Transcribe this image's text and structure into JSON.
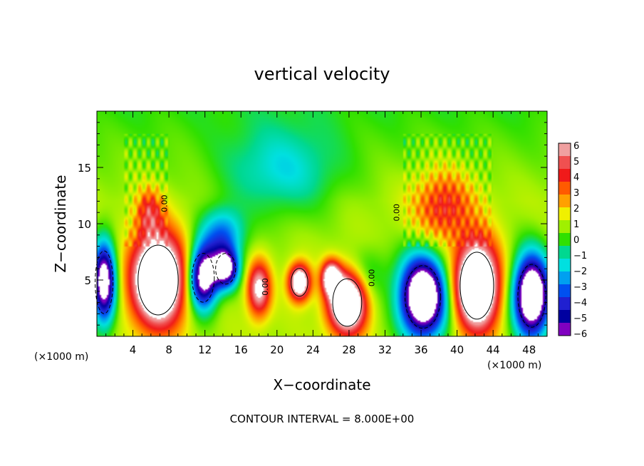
{
  "chart_data": {
    "type": "heatmap",
    "title": "vertical velocity",
    "xlabel": "X−coordinate",
    "ylabel": "Z−coordinate",
    "x_unit_left": "(×1000 m)",
    "x_unit_right": "(×1000 m)",
    "xlim": [
      0,
      50
    ],
    "ylim": [
      0,
      20
    ],
    "x_ticks": [
      4,
      8,
      12,
      16,
      20,
      24,
      28,
      32,
      36,
      40,
      44,
      48
    ],
    "y_ticks": [
      5,
      10,
      15
    ],
    "contour_interval_text": "CONTOUR INTERVAL = 8.000E+00",
    "contour_label": "0.00",
    "colorbar": {
      "range": [
        -6,
        6
      ],
      "labels": [
        "6",
        "5",
        "4",
        "3",
        "2",
        "1",
        "0",
        "−1",
        "−2",
        "−3",
        "−4",
        "−5",
        "−6"
      ],
      "colors": [
        "#f0a0a0",
        "#f05050",
        "#f01a1a",
        "#ff5a00",
        "#ffa000",
        "#f0f000",
        "#a0f000",
        "#30e000",
        "#00d890",
        "#00e0e0",
        "#00a0f0",
        "#0050f0",
        "#2020d0",
        "#0000a0",
        "#8000c0"
      ]
    },
    "features": [
      {
        "kind": "updraft",
        "x": 6.8,
        "z": 5.0,
        "rx": 3.6,
        "rz": 5.0,
        "peak": 11
      },
      {
        "kind": "updraft",
        "x": 18.0,
        "z": 4.2,
        "rx": 1.6,
        "rz": 3.0,
        "peak": 6
      },
      {
        "kind": "updraft",
        "x": 22.5,
        "z": 4.8,
        "rx": 1.5,
        "rz": 2.0,
        "peak": 8
      },
      {
        "kind": "updraft",
        "x": 26.0,
        "z": 5.2,
        "rx": 1.3,
        "rz": 1.8,
        "peak": 7
      },
      {
        "kind": "updraft",
        "x": 27.8,
        "z": 3.0,
        "rx": 2.6,
        "rz": 3.4,
        "peak": 10
      },
      {
        "kind": "updraft",
        "x": 42.2,
        "z": 4.5,
        "rx": 3.0,
        "rz": 4.8,
        "peak": 11
      },
      {
        "kind": "updraft",
        "x": 5.8,
        "z": 11.0,
        "rx": 1.8,
        "rz": 2.6,
        "peak": 3.2
      },
      {
        "kind": "updraft",
        "x": 38.5,
        "z": 11.5,
        "rx": 4.0,
        "rz": 4.0,
        "peak": 3.4
      },
      {
        "kind": "downdraft",
        "x": 0.8,
        "z": 4.8,
        "rx": 1.6,
        "rz": 4.5,
        "peak": -9
      },
      {
        "kind": "downdraft",
        "x": 11.8,
        "z": 5.2,
        "rx": 2.0,
        "rz": 3.5,
        "peak": -9
      },
      {
        "kind": "downdraft",
        "x": 14.3,
        "z": 6.0,
        "rx": 1.8,
        "rz": 2.2,
        "peak": -8
      },
      {
        "kind": "downdraft",
        "x": 14.0,
        "z": 9.0,
        "rx": 3.0,
        "rz": 3.0,
        "peak": -4
      },
      {
        "kind": "downdraft",
        "x": 36.2,
        "z": 3.5,
        "rx": 3.2,
        "rz": 4.5,
        "peak": -11
      },
      {
        "kind": "downdraft",
        "x": 48.3,
        "z": 3.6,
        "rx": 2.5,
        "rz": 4.5,
        "peak": -11
      },
      {
        "kind": "downdraft",
        "x": 20.5,
        "z": 14.5,
        "rx": 8.0,
        "rz": 5.0,
        "peak": -2.4
      },
      {
        "kind": "downdraft",
        "x": 30.0,
        "z": 5.5,
        "rx": 3.0,
        "rz": 3.0,
        "peak": -1.6
      }
    ]
  }
}
